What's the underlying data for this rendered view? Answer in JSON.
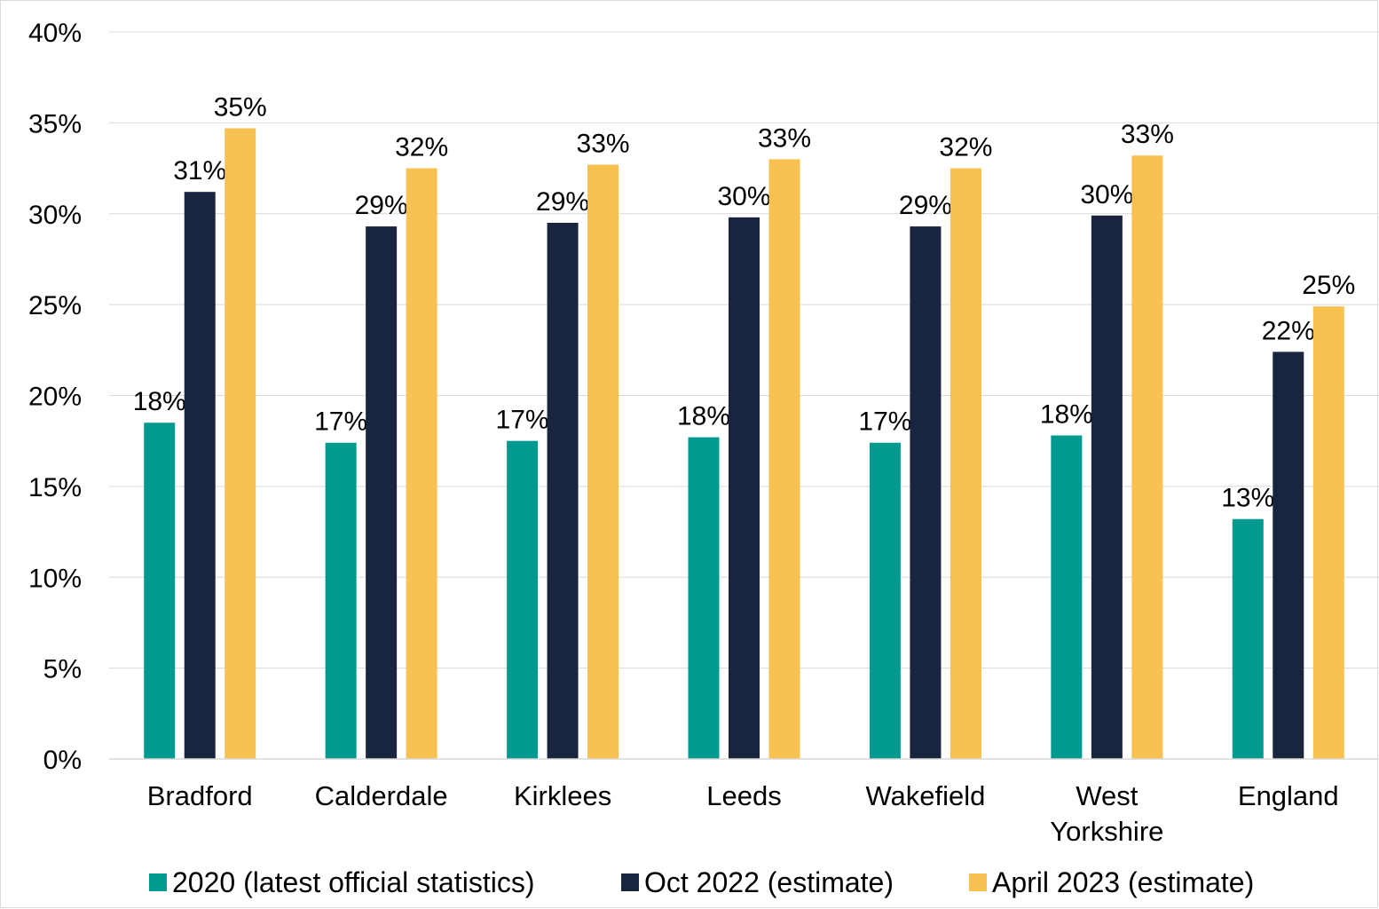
{
  "chart_data": {
    "type": "bar",
    "categories": [
      "Bradford",
      "Calderdale",
      "Kirklees",
      "Leeds",
      "Wakefield",
      "West Yorkshire",
      "England"
    ],
    "category_lines": [
      [
        "Bradford"
      ],
      [
        "Calderdale"
      ],
      [
        "Kirklees"
      ],
      [
        "Leeds"
      ],
      [
        "Wakefield"
      ],
      [
        "West",
        "Yorkshire"
      ],
      [
        "England"
      ]
    ],
    "series": [
      {
        "name": "2020 (latest official statistics)",
        "color": "#009a91",
        "values": [
          18.5,
          17.4,
          17.5,
          17.7,
          17.4,
          17.8,
          13.2
        ],
        "labels": [
          "18%",
          "17%",
          "17%",
          "18%",
          "17%",
          "18%",
          "13%"
        ]
      },
      {
        "name": "Oct 2022 (estimate)",
        "color": "#19243f",
        "values": [
          31.2,
          29.3,
          29.5,
          29.8,
          29.3,
          29.9,
          22.4
        ],
        "labels": [
          "31%",
          "29%",
          "29%",
          "30%",
          "29%",
          "30%",
          "22%"
        ]
      },
      {
        "name": "April 2023 (estimate)",
        "color": "#f9c14f",
        "values": [
          34.7,
          32.5,
          32.7,
          33.0,
          32.5,
          33.2,
          24.9
        ],
        "labels": [
          "35%",
          "32%",
          "33%",
          "33%",
          "32%",
          "33%",
          "25%"
        ]
      }
    ],
    "ylim": [
      0,
      40
    ],
    "yticks": [
      0,
      5,
      10,
      15,
      20,
      25,
      30,
      35,
      40
    ],
    "ytick_labels": [
      "0%",
      "5%",
      "10%",
      "15%",
      "20%",
      "25%",
      "30%",
      "35%",
      "40%"
    ],
    "grid": true,
    "legend_position": "bottom"
  }
}
